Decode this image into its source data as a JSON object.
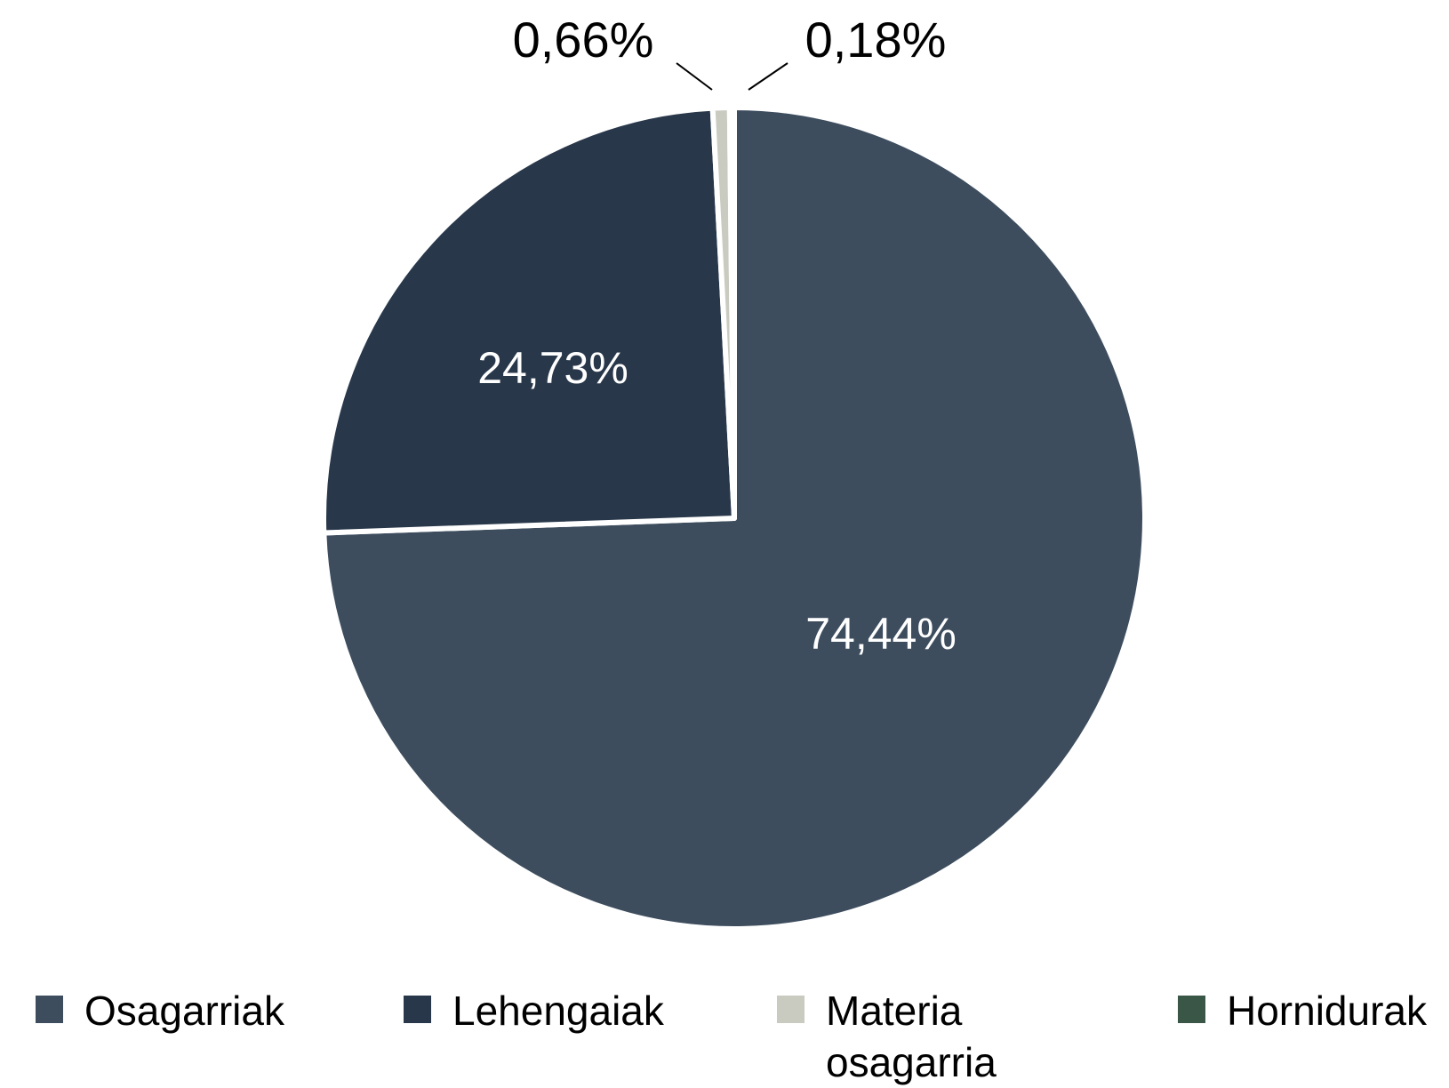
{
  "chart_data": {
    "type": "pie",
    "categories": [
      "Osagarriak",
      "Lehengaiak",
      "Materia osagarria",
      "Hornidurak"
    ],
    "values": [
      74.44,
      24.73,
      0.66,
      0.18
    ],
    "value_labels": [
      "74,44%",
      "24,73%",
      "0,66%",
      "0,18%"
    ],
    "colors": [
      "#3d4d5e",
      "#28374a",
      "#c9cbc0",
      "#3a5646"
    ],
    "legend": "bottom"
  }
}
